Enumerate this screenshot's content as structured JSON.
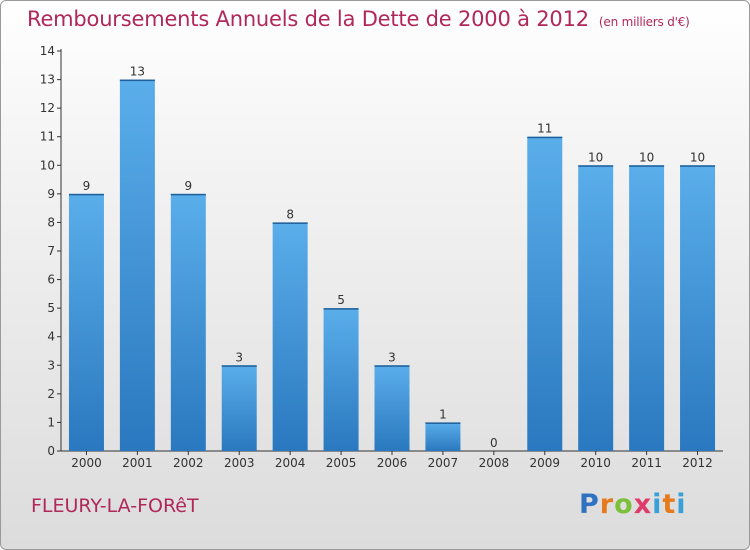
{
  "chart_data": {
    "type": "bar",
    "title": "Remboursements Annuels de la Dette de 2000 à 2012",
    "subtitle": "(en milliers d'€)",
    "categories": [
      "2000",
      "2001",
      "2002",
      "2003",
      "2004",
      "2005",
      "2006",
      "2007",
      "2008",
      "2009",
      "2010",
      "2011",
      "2012"
    ],
    "values": [
      9,
      13,
      9,
      3,
      8,
      5,
      3,
      1,
      0,
      11,
      10,
      10,
      10
    ],
    "ylim": [
      0,
      14
    ],
    "yticks": [
      0,
      1,
      2,
      3,
      4,
      5,
      6,
      7,
      8,
      9,
      10,
      11,
      12,
      13,
      14
    ],
    "grid": false,
    "bar_color": "#3f8fd6"
  },
  "footer": {
    "commune": "FLEURY-LA-FORêT",
    "logo": {
      "p": "P",
      "r": "r",
      "o": "o",
      "x": "x",
      "i": "i",
      "t": "t",
      "i2": "i"
    }
  }
}
